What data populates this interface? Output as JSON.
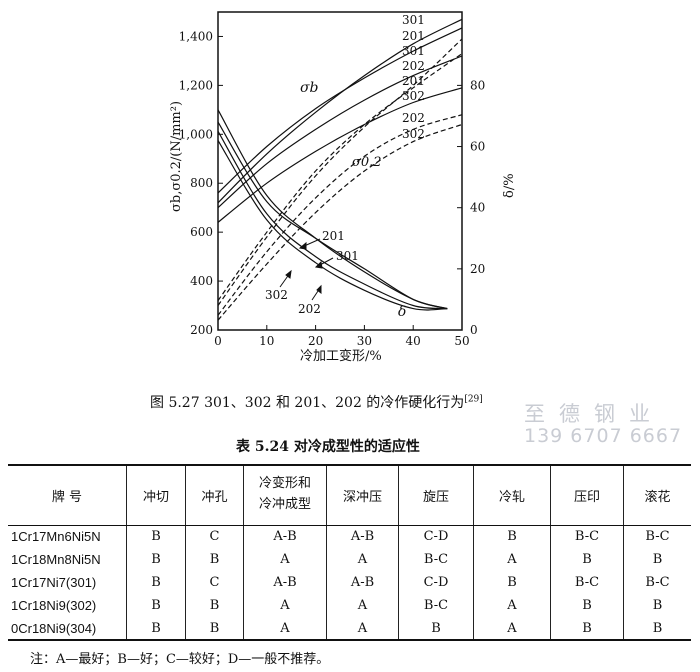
{
  "chart_data": {
    "type": "line",
    "xlabel": "冷加工变形/%",
    "ylabel": "σb,σ0.2/(N/mm²)",
    "y2label": "δ/%",
    "x_ticks": [
      "0",
      "10",
      "20",
      "30",
      "40",
      "50"
    ],
    "y_ticks": [
      "200",
      "400",
      "600",
      "800",
      "1,000",
      "1,200",
      "1,400"
    ],
    "y2_ticks": [
      "0",
      "20",
      "40",
      "60",
      "80"
    ],
    "xlim": [
      0,
      50
    ],
    "ylim": [
      200,
      1500
    ],
    "y2lim": [
      0,
      104
    ],
    "annotations": {
      "sigma_b": "σb",
      "sigma_02": "σ0.2",
      "delta": "δ",
      "end_labels": [
        "301",
        "201",
        "301",
        "202",
        "201",
        "302",
        "202",
        "302"
      ],
      "lower_labels": [
        "201",
        "301",
        "302",
        "202"
      ]
    },
    "series": [
      {
        "label": "301",
        "group": "sigma_b",
        "style": "solid",
        "x": [
          0,
          10,
          20,
          30,
          40,
          50
        ],
        "y": [
          720,
          920,
          1090,
          1240,
          1370,
          1470
        ]
      },
      {
        "label": "201",
        "group": "sigma_b",
        "style": "solid",
        "x": [
          0,
          10,
          20,
          30,
          40,
          50
        ],
        "y": [
          760,
          950,
          1105,
          1230,
          1340,
          1435
        ]
      },
      {
        "label": "202",
        "group": "sigma_b",
        "style": "solid",
        "x": [
          0,
          10,
          20,
          30,
          40,
          50
        ],
        "y": [
          700,
          880,
          1020,
          1140,
          1240,
          1320
        ]
      },
      {
        "label": "302",
        "group": "sigma_b",
        "style": "solid",
        "x": [
          0,
          10,
          20,
          30,
          40,
          50
        ],
        "y": [
          640,
          800,
          930,
          1040,
          1130,
          1190
        ]
      },
      {
        "label": "301",
        "group": "sigma_02",
        "style": "dashed",
        "x": [
          0,
          10,
          20,
          30,
          40,
          50
        ],
        "y": [
          300,
          580,
          830,
          1030,
          1200,
          1390
        ]
      },
      {
        "label": "201",
        "group": "sigma_02",
        "style": "dashed",
        "x": [
          0,
          10,
          20,
          30,
          40,
          50
        ],
        "y": [
          320,
          600,
          850,
          1040,
          1190,
          1330
        ]
      },
      {
        "label": "202",
        "group": "sigma_02",
        "style": "dashed",
        "x": [
          0,
          10,
          20,
          30,
          40,
          50
        ],
        "y": [
          260,
          520,
          740,
          910,
          1020,
          1080
        ]
      },
      {
        "label": "302",
        "group": "sigma_02",
        "style": "dashed",
        "x": [
          0,
          10,
          20,
          30,
          40,
          50
        ],
        "y": [
          240,
          470,
          680,
          850,
          970,
          1040
        ]
      },
      {
        "label": "301",
        "group": "delta",
        "style": "solid",
        "x": [
          0,
          10,
          20,
          30,
          40,
          47
        ],
        "y2": [
          72,
          44,
          30,
          19,
          10,
          7
        ]
      },
      {
        "label": "201",
        "group": "delta",
        "style": "solid",
        "x": [
          0,
          10,
          20,
          30,
          40,
          47
        ],
        "y2": [
          68,
          42,
          30,
          20,
          10,
          7
        ]
      },
      {
        "label": "302",
        "group": "delta",
        "style": "solid",
        "x": [
          0,
          10,
          20,
          30,
          40,
          47
        ],
        "y2": [
          65,
          38,
          24,
          15,
          8,
          7
        ]
      },
      {
        "label": "202",
        "group": "delta",
        "style": "solid",
        "x": [
          0,
          10,
          20,
          30,
          40,
          47
        ],
        "y2": [
          62,
          36,
          22,
          13,
          7,
          7
        ]
      }
    ]
  },
  "figure": {
    "caption": "图 5.27   301、302 和 201、202 的冷作硬化行为",
    "ref": "[29]"
  },
  "watermark": {
    "line1": "至德钢业",
    "line2": "139 6707 6667"
  },
  "table": {
    "title": "表 5.24   对冷成型性的适应性",
    "grade_header": "牌    号",
    "headers": [
      "冲切",
      "冲孔",
      "冷变形和冷冲成型",
      "深冲压",
      "旋压",
      "冷轧",
      "压印",
      "滚花"
    ],
    "rows": [
      {
        "grade": "1Cr17Mn6Ni5N",
        "values": [
          "B",
          "C",
          "A-B",
          "A-B",
          "C-D",
          "B",
          "B-C",
          "B-C"
        ]
      },
      {
        "grade": "1Cr18Mn8Ni5N",
        "values": [
          "B",
          "B",
          "A",
          "A",
          "B-C",
          "A",
          "B",
          "B"
        ]
      },
      {
        "grade": "1Cr17Ni7(301)",
        "values": [
          "B",
          "C",
          "A-B",
          "A-B",
          "C-D",
          "B",
          "B-C",
          "B-C"
        ]
      },
      {
        "grade": "1Cr18Ni9(302)",
        "values": [
          "B",
          "B",
          "A",
          "A",
          "B-C",
          "A",
          "B",
          "B"
        ]
      },
      {
        "grade": "0Cr18Ni9(304)",
        "values": [
          "B",
          "B",
          "A",
          "A",
          "B",
          "A",
          "B",
          "B"
        ]
      }
    ],
    "note": "注：A—最好；B—好；C—较好；D—一般不推荐。"
  }
}
